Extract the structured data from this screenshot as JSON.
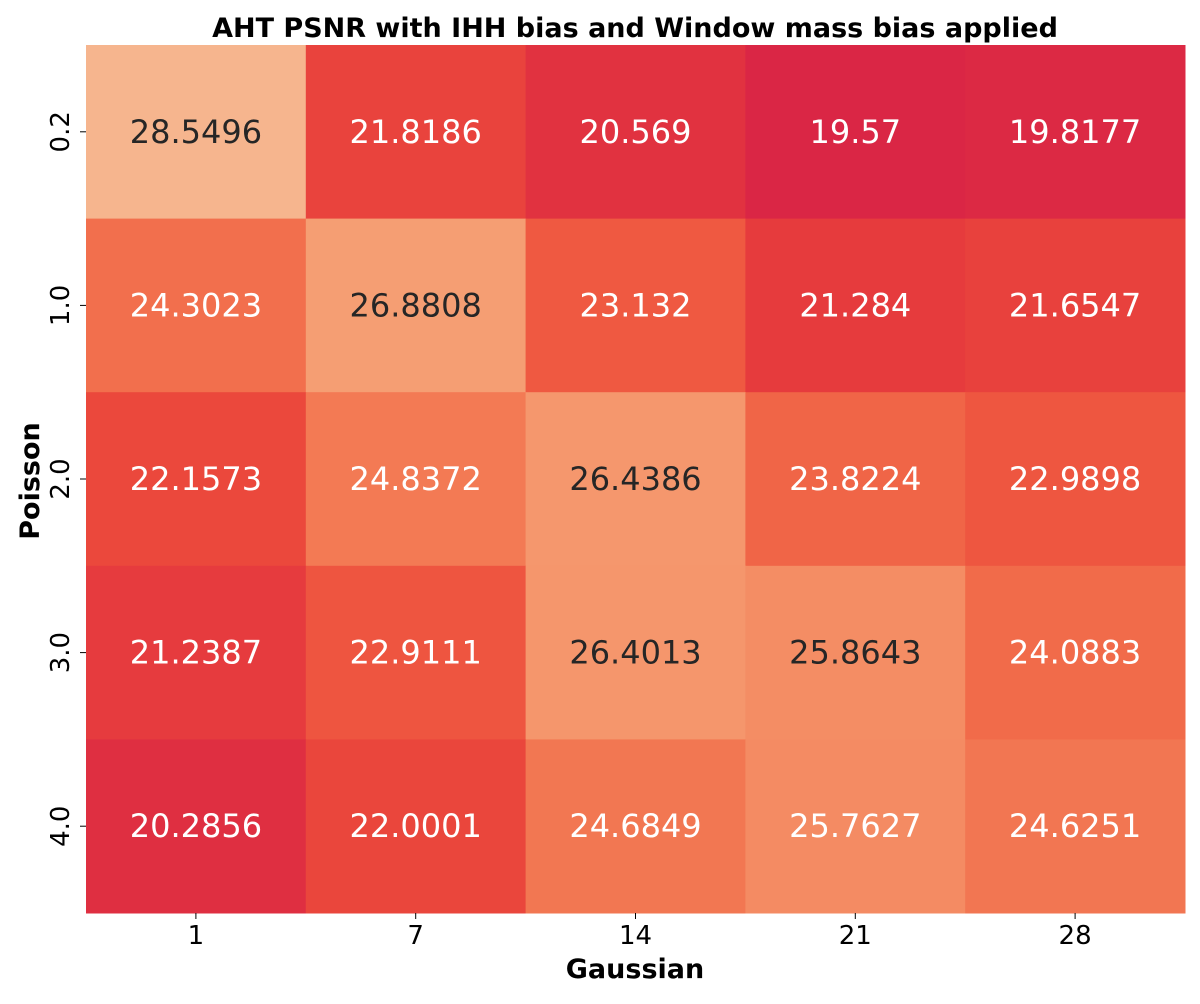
{
  "chart_data": {
    "type": "heatmap",
    "title": "AHT PSNR with IHH bias and Window mass bias applied",
    "xlabel": "Gaussian",
    "ylabel": "Poisson",
    "x_categories": [
      "1",
      "7",
      "14",
      "21",
      "28"
    ],
    "y_categories": [
      "0.2",
      "1.0",
      "2.0",
      "3.0",
      "4.0"
    ],
    "values": [
      [
        28.5496,
        21.8186,
        20.569,
        19.57,
        19.8177
      ],
      [
        24.3023,
        26.8808,
        23.132,
        21.284,
        21.6547
      ],
      [
        22.1573,
        24.8372,
        26.4386,
        23.8224,
        22.9898
      ],
      [
        21.2387,
        22.9111,
        26.4013,
        25.8643,
        24.0883
      ],
      [
        20.2856,
        22.0001,
        24.6849,
        25.7627,
        24.6251
      ]
    ],
    "value_labels": [
      [
        "28.5496",
        "21.8186",
        "20.569",
        "19.57",
        "19.8177"
      ],
      [
        "24.3023",
        "26.8808",
        "23.132",
        "21.284",
        "21.6547"
      ],
      [
        "22.1573",
        "24.8372",
        "26.4386",
        "23.8224",
        "22.9898"
      ],
      [
        "21.2387",
        "22.9111",
        "26.4013",
        "25.8643",
        "24.0883"
      ],
      [
        "20.2856",
        "22.0001",
        "24.6849",
        "25.7627",
        "24.6251"
      ]
    ],
    "colormap": "rocket",
    "color_range": [
      19.57,
      28.5496
    ],
    "colorbar": false,
    "grid": false
  }
}
